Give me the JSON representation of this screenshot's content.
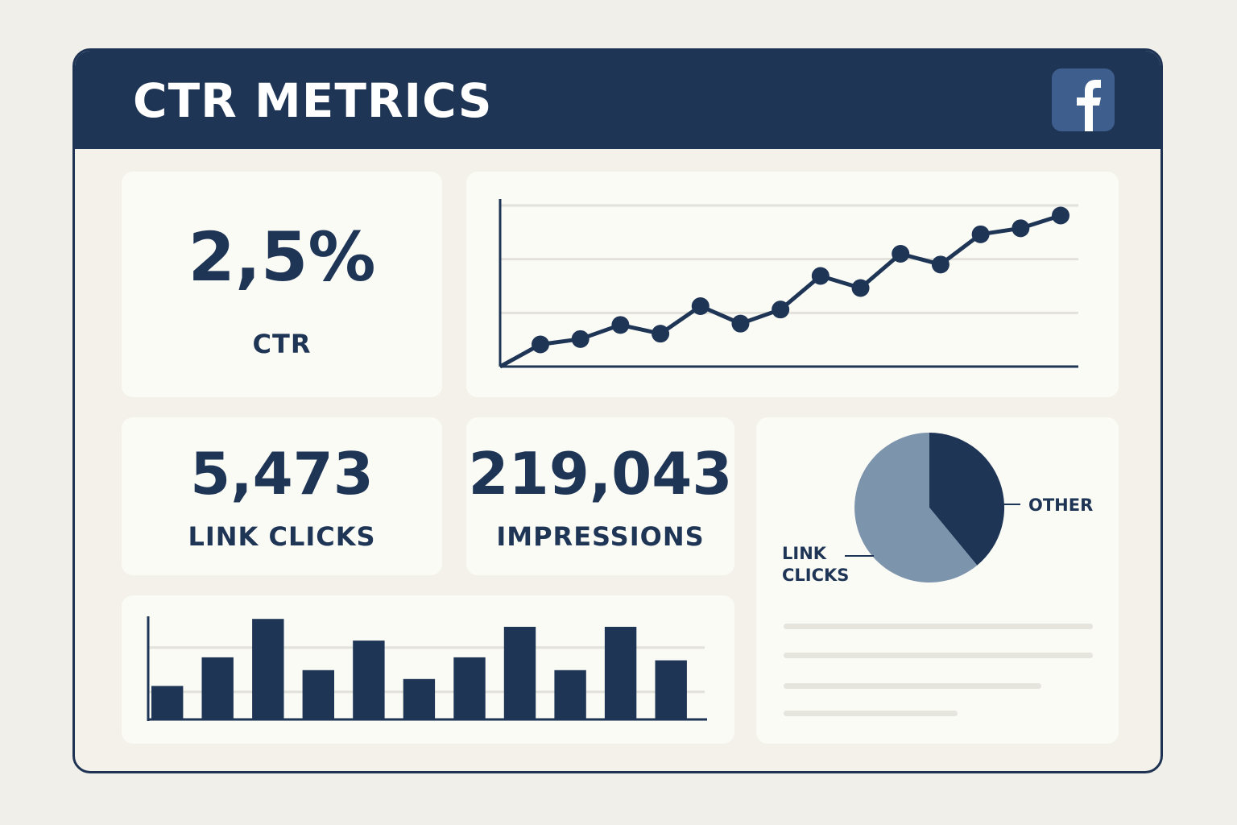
{
  "header": {
    "title": "CTR METRICS",
    "brand_icon": "facebook-icon"
  },
  "colors": {
    "navy": "#1f3556",
    "slate": "#7d94ad",
    "brand_tile": "#3e5f8e",
    "gridline": "#e2e1da"
  },
  "kpis": {
    "ctr": {
      "value": "2,5%",
      "label": "CTR"
    },
    "link_clicks": {
      "value": "5,473",
      "label": "LINK CLICKS"
    },
    "impressions": {
      "value": "219,043",
      "label": "IMPRESSIONS"
    }
  },
  "chart_data": [
    {
      "type": "line",
      "x": [
        1,
        2,
        3,
        4,
        5,
        6,
        7,
        8,
        9,
        10,
        11,
        12,
        13,
        14
      ],
      "values": [
        1.65,
        2.05,
        3.1,
        2.45,
        4.5,
        3.2,
        4.25,
        6.75,
        5.85,
        8.4,
        7.6,
        9.85,
        10.3,
        11.25
      ],
      "ylim": [
        0,
        12
      ],
      "grid": true
    },
    {
      "type": "bar",
      "values": [
        3.4,
        6.3,
        10.2,
        5.0,
        8.0,
        4.1,
        6.3,
        9.4,
        5.0,
        9.4,
        6.0
      ],
      "ylim": [
        0,
        10.3
      ],
      "grid": true
    },
    {
      "type": "pie",
      "slices": [
        {
          "label": "OTHER",
          "value": 39,
          "color": "#1f3556"
        },
        {
          "label": "LINK\nCLICKS",
          "value": 61,
          "color": "#7d94ad"
        }
      ]
    }
  ]
}
